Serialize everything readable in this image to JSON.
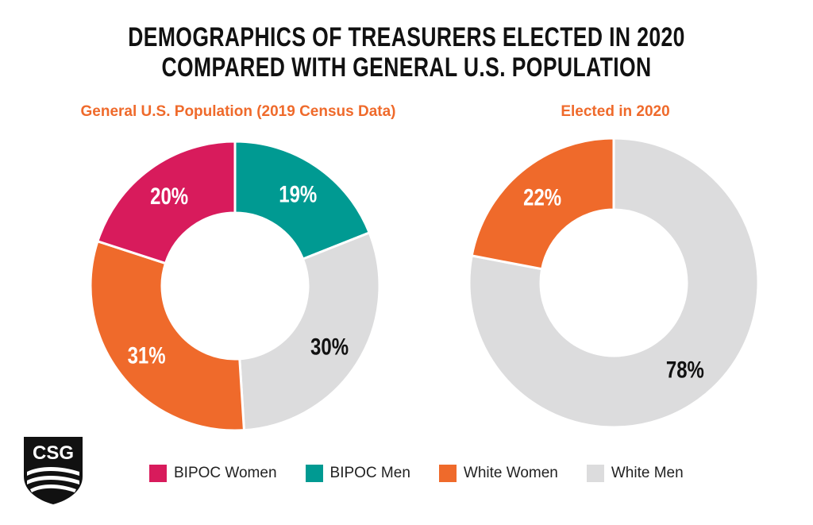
{
  "title": {
    "line1": "DEMOGRAPHICS OF TREASURERS ELECTED IN 2020",
    "line2": "COMPARED WITH GENERAL U.S. POPULATION"
  },
  "logo": {
    "text": "CSG"
  },
  "colors": {
    "bipoc_women": "#d81b5c",
    "bipoc_men": "#009a92",
    "white_women": "#ef6a2b",
    "white_men": "#dcdcdd"
  },
  "chart_data": [
    {
      "type": "pie",
      "title": "General U.S. Population (2019 Census Data)",
      "categories": [
        "BIPOC Women",
        "BIPOC Men",
        "White Women",
        "White Men"
      ],
      "values": [
        20,
        19,
        31,
        30
      ],
      "labels": [
        "20%",
        "19%",
        "31%",
        "30%"
      ],
      "order_clockwise_from_top": [
        "BIPOC Men",
        "White Men",
        "White Women",
        "BIPOC Women"
      ],
      "donut": true
    },
    {
      "type": "pie",
      "title": "Elected in 2020",
      "categories": [
        "White Women",
        "White Men"
      ],
      "values": [
        22,
        78
      ],
      "labels": [
        "22%",
        "78%"
      ],
      "order_clockwise_from_top": [
        "White Men",
        "White Women"
      ],
      "donut": true
    }
  ],
  "legend": [
    {
      "label": "BIPOC Women",
      "color": "#d81b5c"
    },
    {
      "label": "BIPOC Men",
      "color": "#009a92"
    },
    {
      "label": "White Women",
      "color": "#ef6a2b"
    },
    {
      "label": "White Men",
      "color": "#dcdcdd"
    }
  ]
}
